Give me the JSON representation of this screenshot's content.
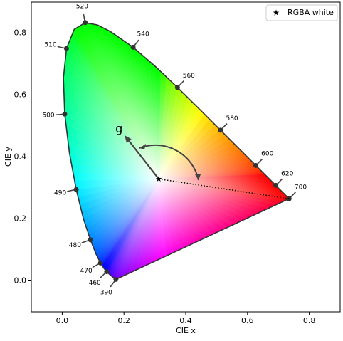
{
  "chart_data": {
    "type": "chromaticity",
    "xlabel": "CIE x",
    "ylabel": "CIE y",
    "xlim": [
      -0.1,
      0.9
    ],
    "ylim": [
      -0.1,
      0.9
    ],
    "xticks": [
      {
        "value": 0,
        "label": "0.0"
      },
      0.2,
      0.4,
      0.6,
      0.8
    ],
    "yticks": [
      {
        "value": 0,
        "label": "0.0"
      },
      0.2,
      0.4,
      0.6,
      0.8
    ],
    "locus": {
      "color": "#333333",
      "x": [
        0.1741,
        0.1738,
        0.1566,
        0.144,
        0.1355,
        0.1241,
        0.1096,
        0.0913,
        0.0687,
        0.0454,
        0.0235,
        0.0082,
        0.0039,
        0.0139,
        0.0389,
        0.0743,
        0.1142,
        0.1547,
        0.2296,
        0.3016,
        0.3731,
        0.4441,
        0.5125,
        0.5752,
        0.627,
        0.6658,
        0.6915,
        0.719,
        0.7347
      ],
      "y": [
        0.005,
        0.0049,
        0.0177,
        0.0297,
        0.0399,
        0.0578,
        0.0868,
        0.1327,
        0.2007,
        0.295,
        0.4127,
        0.5384,
        0.6548,
        0.7502,
        0.812,
        0.8338,
        0.8262,
        0.8059,
        0.7543,
        0.6923,
        0.6245,
        0.5547,
        0.4866,
        0.4242,
        0.3725,
        0.334,
        0.3083,
        0.2809,
        0.2653
      ]
    },
    "wavelength_markers": {
      "labels": [
        390,
        460,
        470,
        480,
        490,
        500,
        510,
        520,
        540,
        560,
        580,
        600,
        620,
        700
      ],
      "x": [
        0.1738,
        0.144,
        0.1241,
        0.0913,
        0.0454,
        0.0082,
        0.0139,
        0.0743,
        0.2296,
        0.3731,
        0.5125,
        0.627,
        0.6915,
        0.7347
      ],
      "y": [
        0.0049,
        0.0297,
        0.0578,
        0.1327,
        0.295,
        0.5384,
        0.7502,
        0.8338,
        0.7543,
        0.6245,
        0.4866,
        0.3725,
        0.3083,
        0.2653
      ]
    },
    "series": [
      {
        "name": "RGBA white",
        "color": "#000000",
        "x": [
          0.3127
        ],
        "y": [
          0.329
        ]
      }
    ],
    "legend": "upper right",
    "dominant_line": {
      "x": [
        0.3127,
        0.7347
      ],
      "y": [
        0.329,
        0.2653
      ]
    },
    "vector": {
      "x": [
        0.3127,
        0.202
      ],
      "y": [
        0.329,
        0.47
      ]
    },
    "annotations": [
      {
        "text": "g",
        "x": 0.184,
        "y": 0.49
      }
    ]
  }
}
